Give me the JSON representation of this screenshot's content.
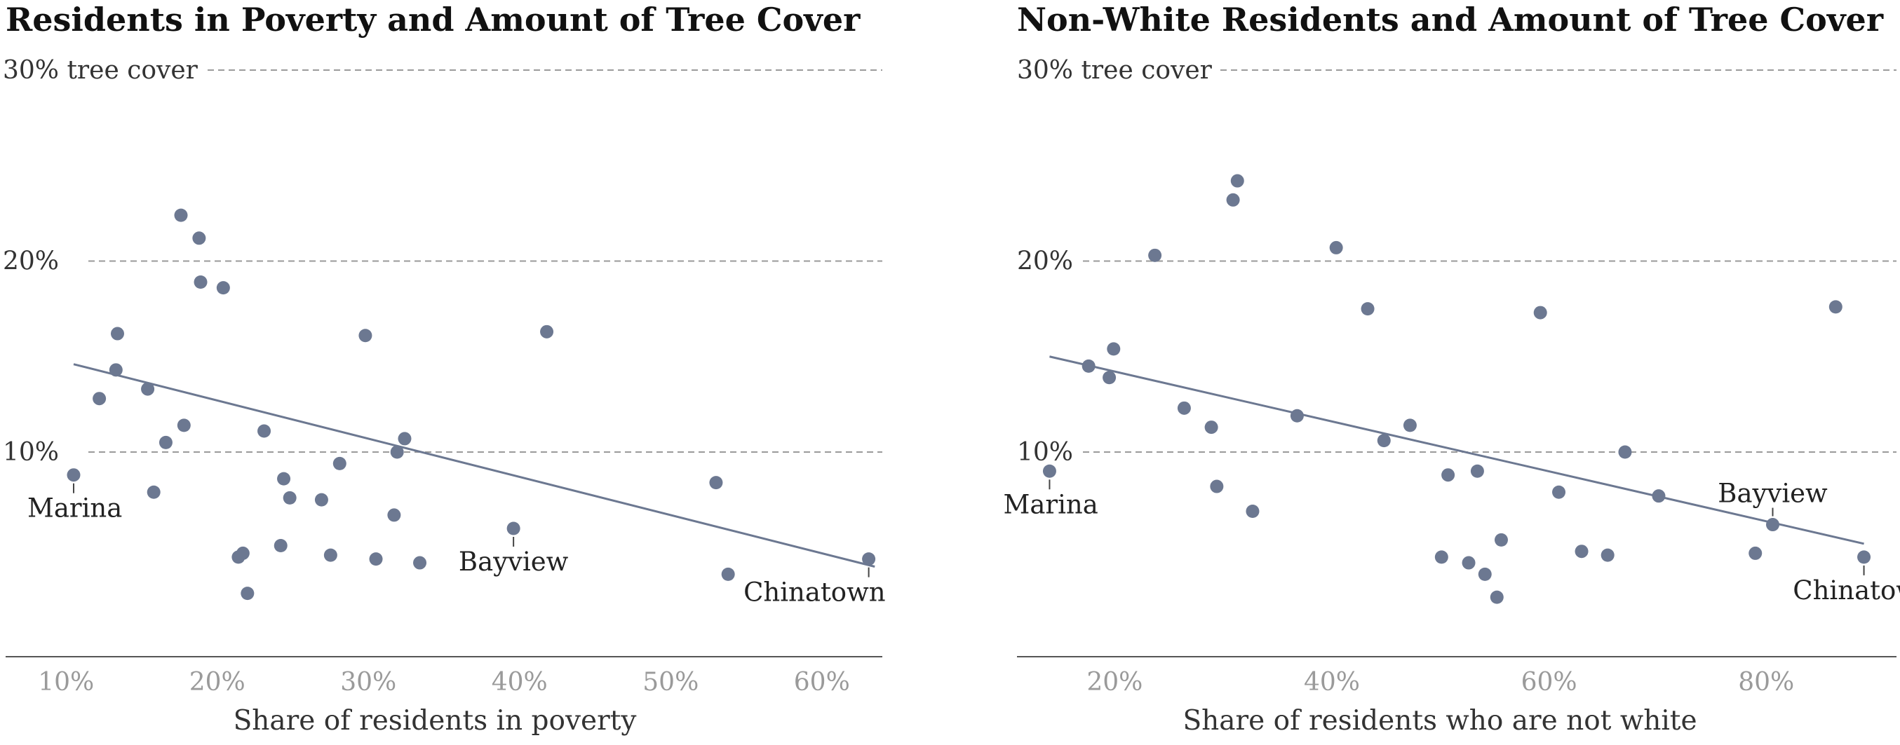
{
  "chart_data": [
    {
      "type": "scatter",
      "title": "Residents in Poverty and Amount of Tree Cover",
      "xlabel": "Share of residents in poverty",
      "ylabel": "",
      "xlim": [
        6,
        64
      ],
      "ylim": [
        0,
        30
      ],
      "x_ticks": [
        10,
        20,
        30,
        40,
        50,
        60
      ],
      "x_tick_labels": [
        "10%",
        "20%",
        "30%",
        "40%",
        "50%",
        "60%"
      ],
      "y_grid": [
        {
          "value": 30,
          "label": "30% tree cover"
        },
        {
          "value": 20,
          "label": "20%"
        },
        {
          "value": 10,
          "label": "10%"
        }
      ],
      "marker_color": "#6c7891",
      "trend": {
        "x": [
          10.5,
          63.5
        ],
        "y": [
          14.6,
          4.0
        ]
      },
      "points": [
        {
          "x": 10.5,
          "y": 8.8
        },
        {
          "x": 12.2,
          "y": 12.8
        },
        {
          "x": 13.3,
          "y": 14.3
        },
        {
          "x": 13.4,
          "y": 16.2
        },
        {
          "x": 15.4,
          "y": 13.3
        },
        {
          "x": 15.8,
          "y": 7.9
        },
        {
          "x": 16.6,
          "y": 10.5
        },
        {
          "x": 17.6,
          "y": 22.4
        },
        {
          "x": 17.8,
          "y": 11.4
        },
        {
          "x": 18.8,
          "y": 21.2
        },
        {
          "x": 18.9,
          "y": 18.9
        },
        {
          "x": 20.4,
          "y": 18.6
        },
        {
          "x": 21.4,
          "y": 4.5
        },
        {
          "x": 21.7,
          "y": 4.7
        },
        {
          "x": 22.0,
          "y": 2.6
        },
        {
          "x": 23.1,
          "y": 11.1
        },
        {
          "x": 24.2,
          "y": 5.1
        },
        {
          "x": 24.4,
          "y": 8.6
        },
        {
          "x": 24.8,
          "y": 7.6
        },
        {
          "x": 26.9,
          "y": 7.5
        },
        {
          "x": 27.5,
          "y": 4.6
        },
        {
          "x": 28.1,
          "y": 9.4
        },
        {
          "x": 29.8,
          "y": 16.1
        },
        {
          "x": 30.5,
          "y": 4.4
        },
        {
          "x": 31.7,
          "y": 6.7
        },
        {
          "x": 31.9,
          "y": 10.0
        },
        {
          "x": 32.4,
          "y": 10.7
        },
        {
          "x": 33.4,
          "y": 4.2
        },
        {
          "x": 39.6,
          "y": 6.0
        },
        {
          "x": 41.8,
          "y": 16.3
        },
        {
          "x": 53.0,
          "y": 8.4
        },
        {
          "x": 53.8,
          "y": 3.6
        },
        {
          "x": 63.1,
          "y": 4.4
        }
      ],
      "annotations": [
        {
          "text": "Marina",
          "x": 10.5,
          "y": 8.8,
          "anchor": "below-left"
        },
        {
          "text": "Bayview",
          "x": 39.6,
          "y": 6.0,
          "anchor": "below-center"
        },
        {
          "text": "Chinatown",
          "x": 63.1,
          "y": 4.4,
          "anchor": "below-right"
        }
      ]
    },
    {
      "type": "scatter",
      "title": "Non-White Residents and Amount of Tree Cover",
      "xlabel": "Share of residents who are not white",
      "ylabel": "",
      "xlim": [
        11,
        92
      ],
      "ylim": [
        0,
        30
      ],
      "x_ticks": [
        20,
        40,
        60,
        80
      ],
      "x_tick_labels": [
        "20%",
        "40%",
        "60%",
        "80%"
      ],
      "y_grid": [
        {
          "value": 30,
          "label": "30% tree cover"
        },
        {
          "value": 20,
          "label": "20%"
        },
        {
          "value": 10,
          "label": "10%"
        }
      ],
      "marker_color": "#6c7891",
      "trend": {
        "x": [
          14,
          89
        ],
        "y": [
          15.0,
          5.2
        ]
      },
      "points": [
        {
          "x": 14.0,
          "y": 9.0
        },
        {
          "x": 17.6,
          "y": 14.5
        },
        {
          "x": 19.5,
          "y": 13.9
        },
        {
          "x": 19.9,
          "y": 15.4
        },
        {
          "x": 23.7,
          "y": 20.3
        },
        {
          "x": 26.4,
          "y": 12.3
        },
        {
          "x": 28.9,
          "y": 11.3
        },
        {
          "x": 29.4,
          "y": 8.2
        },
        {
          "x": 30.9,
          "y": 23.2
        },
        {
          "x": 31.3,
          "y": 24.2
        },
        {
          "x": 32.7,
          "y": 6.9
        },
        {
          "x": 36.8,
          "y": 11.9
        },
        {
          "x": 40.4,
          "y": 20.7
        },
        {
          "x": 43.3,
          "y": 17.5
        },
        {
          "x": 44.8,
          "y": 10.6
        },
        {
          "x": 47.2,
          "y": 11.4
        },
        {
          "x": 50.1,
          "y": 4.5
        },
        {
          "x": 50.7,
          "y": 8.8
        },
        {
          "x": 52.6,
          "y": 4.2
        },
        {
          "x": 53.4,
          "y": 9.0
        },
        {
          "x": 54.1,
          "y": 3.6
        },
        {
          "x": 55.2,
          "y": 2.4
        },
        {
          "x": 55.6,
          "y": 5.4
        },
        {
          "x": 59.2,
          "y": 17.3
        },
        {
          "x": 60.9,
          "y": 7.9
        },
        {
          "x": 63.0,
          "y": 4.8
        },
        {
          "x": 65.4,
          "y": 4.6
        },
        {
          "x": 67.0,
          "y": 10.0
        },
        {
          "x": 70.1,
          "y": 7.7
        },
        {
          "x": 79.0,
          "y": 4.7
        },
        {
          "x": 80.6,
          "y": 6.2
        },
        {
          "x": 86.4,
          "y": 17.6
        },
        {
          "x": 89.0,
          "y": 4.5
        }
      ],
      "annotations": [
        {
          "text": "Marina",
          "x": 14.0,
          "y": 9.0,
          "anchor": "below-left"
        },
        {
          "text": "Bayview",
          "x": 80.6,
          "y": 6.2,
          "anchor": "above-center"
        },
        {
          "text": "Chinatown",
          "x": 89.0,
          "y": 4.5,
          "anchor": "below-center"
        }
      ]
    }
  ]
}
